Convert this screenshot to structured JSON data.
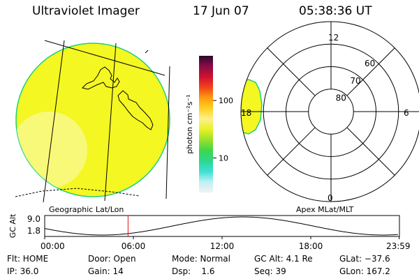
{
  "header": {
    "title": "Ultraviolet Imager",
    "date": "17 Jun 07",
    "time": "05:38:36 UT"
  },
  "colors": {
    "image_fill": "#f4f721",
    "land_outline": "#000000",
    "edge": "#19d27a"
  },
  "geo_panel": {
    "label": "Geographic Lat/Lon"
  },
  "colorbar": {
    "unit_label": "photon cm⁻²s⁻¹",
    "ticks": [
      {
        "value": 100,
        "label": "100"
      },
      {
        "value": 10,
        "label": "10"
      }
    ],
    "range": [
      2.5,
      600
    ],
    "stops": [
      "#f2f2f2",
      "#bff0f4",
      "#3ce0d6",
      "#2bd88e",
      "#3fd64a",
      "#9ae02c",
      "#e6f226",
      "#fff08a",
      "#ffd020",
      "#ff9a10",
      "#f24418",
      "#d01030",
      "#8a0c46",
      "#2a0a2e"
    ]
  },
  "polar_panel": {
    "label": "Apex MLat/MLT",
    "mlt_labels": {
      "top": "12",
      "right": "6",
      "bottom": "0",
      "left": "18"
    },
    "lat_rings": [
      {
        "value": 80,
        "label": "80"
      },
      {
        "value": 70,
        "label": "70"
      },
      {
        "value": 60,
        "label": "60"
      }
    ]
  },
  "altitude_plot": {
    "axis_label": "GC Alt",
    "y_ticks": [
      "9.0",
      "1.8"
    ],
    "x_ticks": [
      "00:00",
      "06:00",
      "12:00",
      "18:00",
      "23:59"
    ],
    "y_range": [
      1.8,
      9.0
    ],
    "current_time_hours": 5.64,
    "marker_color": "#e01010"
  },
  "status": {
    "filter": "Flt: HOME",
    "ip": "IP: 36.0",
    "door": "Door: Open",
    "gain": "Gain: 14",
    "mode": "Mode: Normal",
    "dsp": "Dsp:    1.6",
    "gc_alt": "GC Alt: 4.1 Re",
    "seq": "Seq: 39",
    "glat": "GLat: −37.6",
    "glon": "GLon: 167.2"
  }
}
